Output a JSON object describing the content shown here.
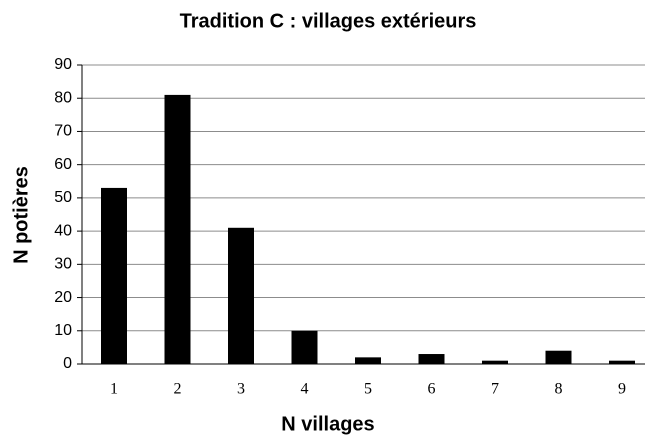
{
  "chart_data": {
    "type": "bar",
    "title": "Tradition C : villages extérieurs",
    "x_label": "N villages",
    "y_label": "N potières",
    "categories": [
      "1",
      "2",
      "3",
      "4",
      "5",
      "6",
      "7",
      "8",
      "9"
    ],
    "values": [
      53,
      81,
      41,
      10,
      2,
      3,
      1,
      4,
      1
    ],
    "color": "#000000",
    "ylim": [
      0,
      90
    ],
    "yticks": [
      0,
      10,
      20,
      30,
      40,
      50,
      60,
      70,
      80,
      90
    ],
    "grid": true
  }
}
